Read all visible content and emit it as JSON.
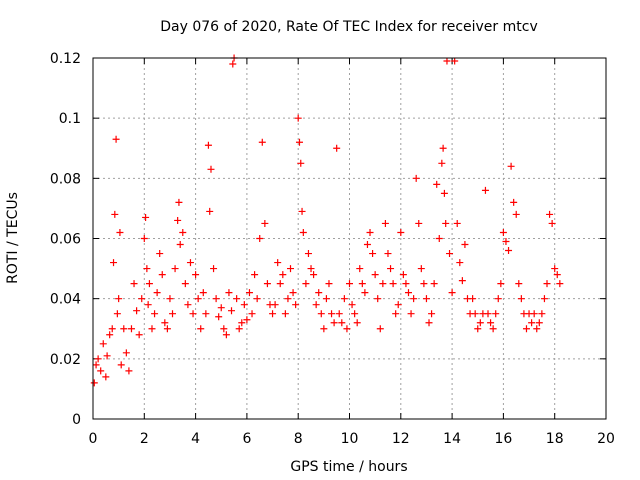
{
  "chart_data": {
    "type": "scatter",
    "title": "Day 076 of 2020, Rate Of TEC Index for receiver mtcv",
    "xlabel": "GPS time / hours",
    "ylabel": "ROTI / TECUs",
    "xlim": [
      0,
      20
    ],
    "ylim": [
      0,
      0.12
    ],
    "xticks": [
      0,
      2,
      4,
      6,
      8,
      10,
      12,
      14,
      16,
      18,
      20
    ],
    "yticks": [
      0,
      0.02,
      0.04,
      0.06,
      0.08,
      0.1,
      0.12
    ],
    "xtick_labels": [
      "0",
      "2",
      "4",
      "6",
      "8",
      "10",
      "12",
      "14",
      "16",
      "18",
      "20"
    ],
    "ytick_labels": [
      "0",
      "0.02",
      "0.04",
      "0.06",
      "0.08",
      "0.1",
      "0.12"
    ],
    "grid": true,
    "marker": "+",
    "marker_color": "#ff0000",
    "series": [
      {
        "x": [
          0.05,
          0.12,
          0.2,
          0.3,
          0.4,
          0.5,
          0.55,
          0.65,
          0.75,
          0.8,
          0.85,
          0.9,
          0.95,
          1.0,
          1.05,
          1.1,
          1.2,
          1.3,
          1.4,
          1.5,
          1.6,
          1.7,
          1.8,
          1.9,
          2.0,
          2.05,
          2.1,
          2.15,
          2.2,
          2.3,
          2.4,
          2.5,
          2.6,
          2.7,
          2.8,
          2.9,
          3.0,
          3.1,
          3.2,
          3.3,
          3.35,
          3.4,
          3.5,
          3.6,
          3.7,
          3.8,
          3.9,
          4.0,
          4.1,
          4.2,
          4.3,
          4.4,
          4.5,
          4.55,
          4.6,
          4.7,
          4.8,
          4.9,
          5.0,
          5.1,
          5.2,
          5.3,
          5.4,
          5.45,
          5.5,
          5.6,
          5.7,
          5.8,
          5.9,
          6.0,
          6.1,
          6.2,
          6.3,
          6.4,
          6.5,
          6.6,
          6.7,
          6.8,
          6.9,
          7.0,
          7.1,
          7.2,
          7.3,
          7.4,
          7.5,
          7.6,
          7.7,
          7.8,
          7.9,
          8.0,
          8.05,
          8.1,
          8.15,
          8.2,
          8.3,
          8.4,
          8.5,
          8.6,
          8.7,
          8.8,
          8.9,
          9.0,
          9.1,
          9.2,
          9.3,
          9.4,
          9.5,
          9.6,
          9.7,
          9.8,
          9.9,
          10.0,
          10.1,
          10.2,
          10.3,
          10.4,
          10.5,
          10.6,
          10.7,
          10.8,
          10.9,
          11.0,
          11.1,
          11.2,
          11.3,
          11.4,
          11.5,
          11.6,
          11.7,
          11.8,
          11.9,
          12.0,
          12.1,
          12.2,
          12.3,
          12.4,
          12.5,
          12.6,
          12.7,
          12.8,
          12.9,
          13.0,
          13.1,
          13.2,
          13.3,
          13.4,
          13.5,
          13.6,
          13.65,
          13.7,
          13.75,
          13.8,
          13.9,
          14.0,
          14.1,
          14.2,
          14.3,
          14.4,
          14.5,
          14.6,
          14.7,
          14.8,
          14.9,
          15.0,
          15.1,
          15.2,
          15.3,
          15.4,
          15.5,
          15.6,
          15.7,
          15.8,
          15.9,
          16.0,
          16.1,
          16.2,
          16.3,
          16.4,
          16.5,
          16.6,
          16.7,
          16.8,
          16.9,
          17.0,
          17.1,
          17.2,
          17.3,
          17.4,
          17.5,
          17.6,
          17.7,
          17.8,
          17.9,
          18.0,
          18.1,
          18.2
        ],
        "y": [
          0.012,
          0.018,
          0.02,
          0.016,
          0.025,
          0.014,
          0.021,
          0.028,
          0.03,
          0.052,
          0.068,
          0.093,
          0.035,
          0.04,
          0.062,
          0.018,
          0.03,
          0.022,
          0.016,
          0.03,
          0.045,
          0.036,
          0.028,
          0.04,
          0.06,
          0.067,
          0.05,
          0.038,
          0.045,
          0.03,
          0.035,
          0.042,
          0.055,
          0.048,
          0.032,
          0.03,
          0.04,
          0.035,
          0.05,
          0.066,
          0.072,
          0.058,
          0.062,
          0.045,
          0.038,
          0.052,
          0.035,
          0.048,
          0.04,
          0.03,
          0.042,
          0.035,
          0.091,
          0.069,
          0.083,
          0.05,
          0.04,
          0.034,
          0.037,
          0.03,
          0.028,
          0.042,
          0.036,
          0.118,
          0.12,
          0.04,
          0.03,
          0.032,
          0.038,
          0.033,
          0.042,
          0.035,
          0.048,
          0.04,
          0.06,
          0.092,
          0.065,
          0.045,
          0.038,
          0.035,
          0.038,
          0.052,
          0.045,
          0.048,
          0.035,
          0.04,
          0.05,
          0.042,
          0.038,
          0.1,
          0.092,
          0.085,
          0.069,
          0.062,
          0.045,
          0.055,
          0.05,
          0.048,
          0.038,
          0.042,
          0.035,
          0.03,
          0.04,
          0.045,
          0.035,
          0.032,
          0.09,
          0.035,
          0.032,
          0.04,
          0.03,
          0.045,
          0.038,
          0.035,
          0.032,
          0.05,
          0.045,
          0.042,
          0.058,
          0.062,
          0.055,
          0.048,
          0.04,
          0.03,
          0.045,
          0.065,
          0.055,
          0.05,
          0.045,
          0.035,
          0.038,
          0.062,
          0.048,
          0.045,
          0.042,
          0.035,
          0.04,
          0.08,
          0.065,
          0.05,
          0.045,
          0.04,
          0.032,
          0.035,
          0.045,
          0.078,
          0.06,
          0.085,
          0.09,
          0.075,
          0.065,
          0.119,
          0.055,
          0.042,
          0.119,
          0.065,
          0.052,
          0.046,
          0.058,
          0.04,
          0.035,
          0.04,
          0.035,
          0.03,
          0.032,
          0.035,
          0.076,
          0.035,
          0.032,
          0.03,
          0.035,
          0.04,
          0.045,
          0.062,
          0.059,
          0.056,
          0.084,
          0.072,
          0.068,
          0.045,
          0.04,
          0.035,
          0.03,
          0.035,
          0.032,
          0.035,
          0.03,
          0.032,
          0.035,
          0.04,
          0.045,
          0.068,
          0.065,
          0.05,
          0.048,
          0.045
        ]
      }
    ]
  }
}
